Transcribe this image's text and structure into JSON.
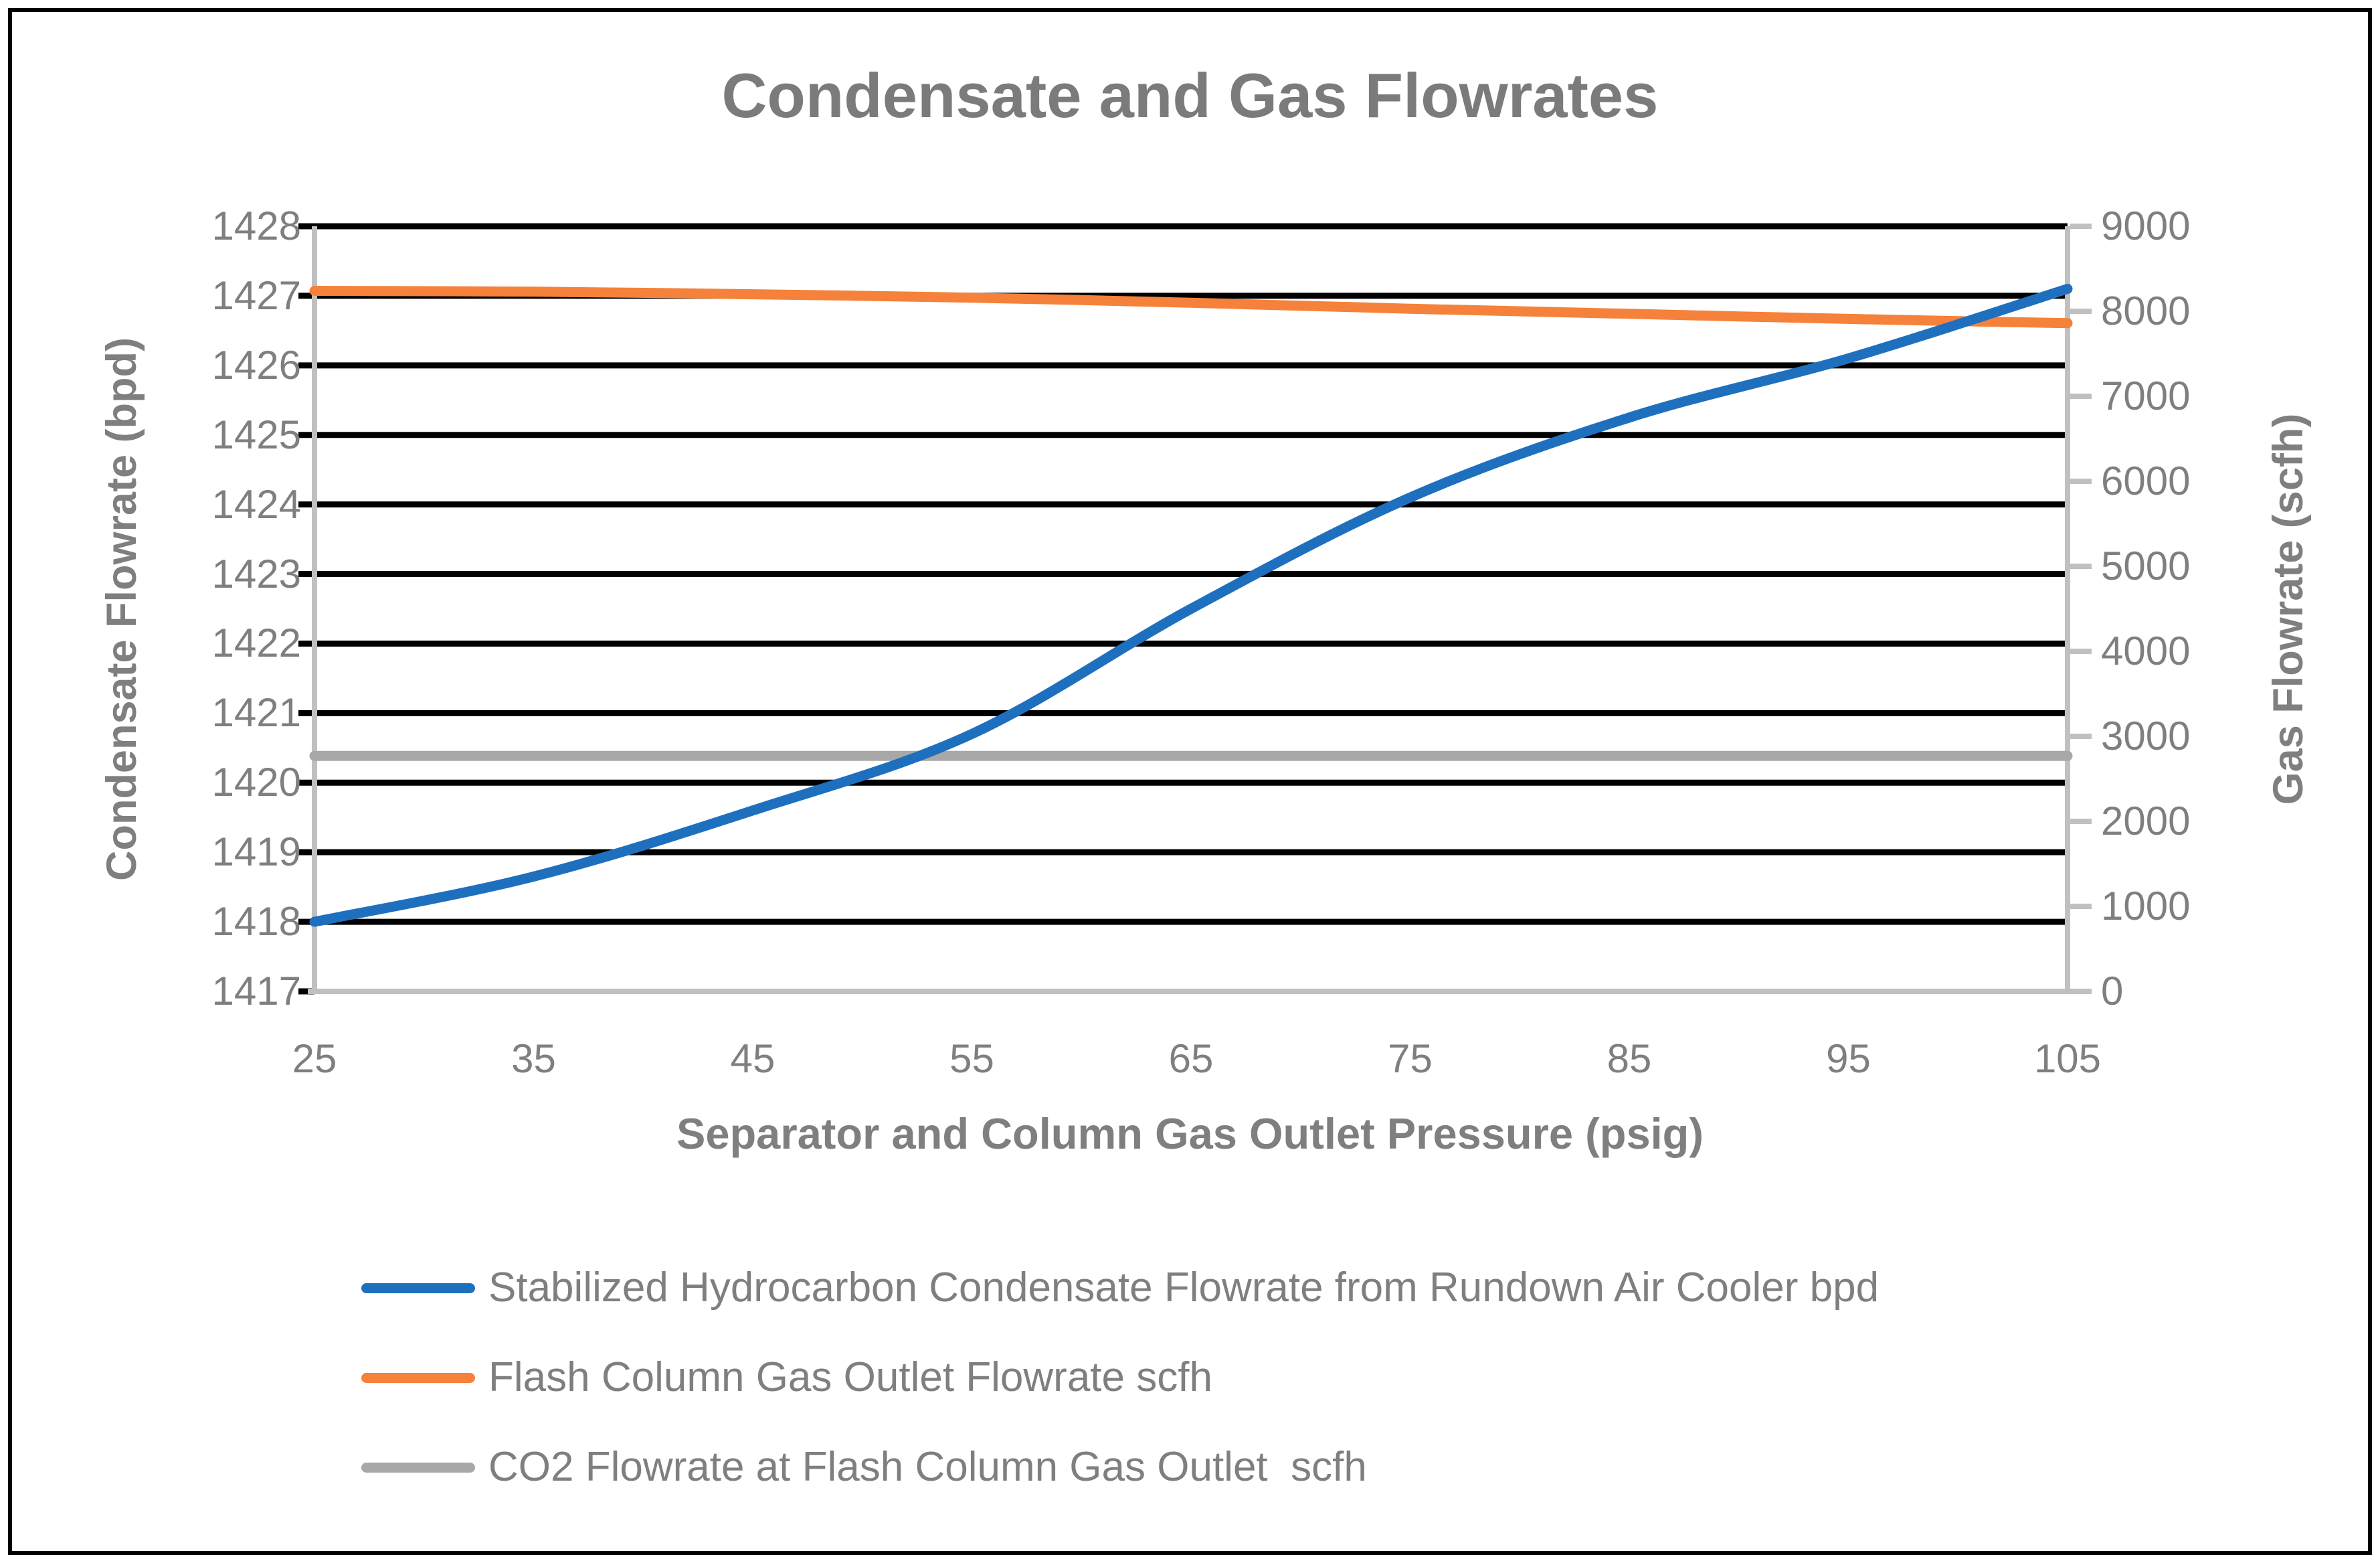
{
  "styles": {
    "grid_color": "#000000",
    "axis_line_color": "#c0c0c0",
    "text_color": "#7f7f7f",
    "title_color": "#7b7b7b"
  },
  "chart_data": {
    "type": "line",
    "title": "Condensate and Gas Flowrates",
    "xlabel": "Separator and Column Gas Outlet Pressure (psig)",
    "x": [
      25,
      35,
      45,
      55,
      65,
      75,
      85,
      95,
      105
    ],
    "left_axis": {
      "label": "Condensate Flowrate (bpd)",
      "min": 1417,
      "max": 1428,
      "ticks": [
        1417,
        1418,
        1419,
        1420,
        1421,
        1422,
        1423,
        1424,
        1425,
        1426,
        1427,
        1428
      ]
    },
    "right_axis": {
      "label": "Gas Flowrate (scfh)",
      "min": 0,
      "max": 9000,
      "ticks": [
        0,
        1000,
        2000,
        3000,
        4000,
        5000,
        6000,
        7000,
        8000,
        9000
      ]
    },
    "grid": "horizontal-black",
    "legend_position": "bottom-left",
    "series": [
      {
        "name": "Stabilized Hydrocarbon Condensate Flowrate from Rundown Air Cooler bpd",
        "axis": "left",
        "color": "#1e70bf",
        "values": [
          1418.0,
          1418.65,
          1419.6,
          1420.7,
          1422.5,
          1424.1,
          1425.25,
          1426.1,
          1427.1
        ]
      },
      {
        "name": "Flash Column Gas Outlet Flowrate scfh",
        "axis": "right",
        "color": "#f5813a",
        "values": [
          8240,
          8230,
          8200,
          8160,
          8100,
          8030,
          7970,
          7910,
          7860
        ]
      },
      {
        "name": "CO2 Flowrate at Flash Column Gas Outlet  scfh",
        "axis": "right",
        "color": "#a8a8a8",
        "values": [
          2770,
          2770,
          2770,
          2770,
          2770,
          2770,
          2770,
          2770,
          2770
        ]
      }
    ]
  }
}
